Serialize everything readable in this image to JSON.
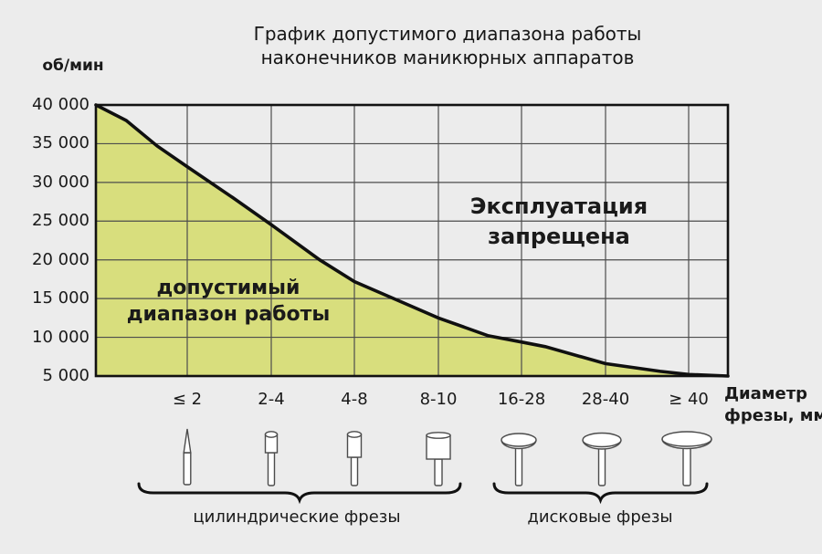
{
  "title": {
    "line1": "График допустимого диапазона работы",
    "line2": "наконечников маникюрных аппаратов"
  },
  "y_axis": {
    "unit": "об/мин",
    "ticks": [
      "40 000",
      "35 000",
      "30 000",
      "25 000",
      "20 000",
      "15 000",
      "10 000",
      "5 000"
    ]
  },
  "x_axis": {
    "categories": [
      "≤ 2",
      "2-4",
      "4-8",
      "8-10",
      "16-28",
      "28-40",
      "≥ 40"
    ],
    "label_line1": "Диаметр",
    "label_line2": "фрезы, мм"
  },
  "regions": {
    "allowed_line1": "допустимый",
    "allowed_line2": "диапазон работы",
    "forbidden_line1": "Эксплуатация",
    "forbidden_line2": "запрещена"
  },
  "groups": [
    {
      "label": "цилиндрические фрезы"
    },
    {
      "label": "дисковые фрезы"
    }
  ],
  "icons": [
    {
      "name": "needle-bur-icon",
      "category": "≤ 2",
      "type": "needle"
    },
    {
      "name": "cylinder-bur-small-icon",
      "category": "2-4",
      "type": "cylinder"
    },
    {
      "name": "cylinder-bur-medium-icon",
      "category": "4-8",
      "type": "cylinder"
    },
    {
      "name": "cylinder-bur-large-icon",
      "category": "8-10",
      "type": "cylinder"
    },
    {
      "name": "disk-bur-small-icon",
      "category": "16-28",
      "type": "disk"
    },
    {
      "name": "disk-bur-medium-icon",
      "category": "28-40",
      "type": "disk"
    },
    {
      "name": "disk-bur-large-icon",
      "category": "≥ 40",
      "type": "disk"
    }
  ],
  "colors": {
    "background": "#ececec",
    "area_fill": "#d8de7d",
    "curve": "#101010",
    "grid": "#4d4d4d",
    "border": "#111111",
    "icon_stroke": "#4b4b4b",
    "text": "#1a1a1a"
  },
  "chart_data": {
    "type": "area",
    "title": "График допустимого диапазона работы наконечников маникюрных аппаратов",
    "ylabel": "об/мин",
    "xlabel": "Диаметр фрезы, мм",
    "ylim": [
      5000,
      40000
    ],
    "y_ticks": [
      40000,
      35000,
      30000,
      25000,
      20000,
      15000,
      10000,
      5000
    ],
    "categories": [
      "≤ 2",
      "2-4",
      "4-8",
      "8-10",
      "16-28",
      "28-40",
      "≥ 40"
    ],
    "max_rpm_at_category": [
      32000,
      24500,
      17200,
      12500,
      9400,
      6600,
      5200
    ],
    "curve_points": [
      {
        "x_frac": 0.0,
        "rpm": 40000
      },
      {
        "x_frac": 0.048,
        "rpm": 38000
      },
      {
        "x_frac": 0.097,
        "rpm": 34700
      },
      {
        "x_frac": 0.145,
        "rpm": 32000
      },
      {
        "x_frac": 0.217,
        "rpm": 28000
      },
      {
        "x_frac": 0.278,
        "rpm": 24500
      },
      {
        "x_frac": 0.354,
        "rpm": 20000
      },
      {
        "x_frac": 0.409,
        "rpm": 17200
      },
      {
        "x_frac": 0.474,
        "rpm": 14900
      },
      {
        "x_frac": 0.542,
        "rpm": 12500
      },
      {
        "x_frac": 0.621,
        "rpm": 10200
      },
      {
        "x_frac": 0.673,
        "rpm": 9400
      },
      {
        "x_frac": 0.711,
        "rpm": 8800
      },
      {
        "x_frac": 0.806,
        "rpm": 6600
      },
      {
        "x_frac": 0.893,
        "rpm": 5600
      },
      {
        "x_frac": 0.938,
        "rpm": 5200
      },
      {
        "x_frac": 1.0,
        "rpm": 5000
      }
    ],
    "region_labels": {
      "below_curve": "допустимый диапазон работы",
      "above_curve": "Эксплуатация запрещена"
    },
    "grid": true,
    "legend": false
  }
}
